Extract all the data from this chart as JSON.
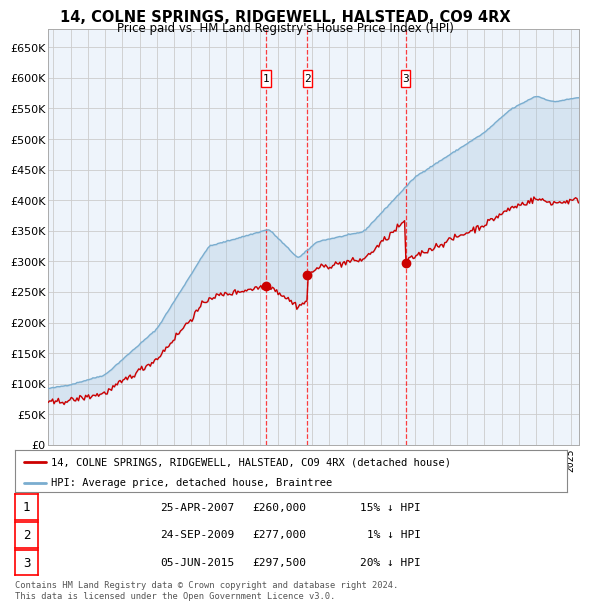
{
  "title": "14, COLNE SPRINGS, RIDGEWELL, HALSTEAD, CO9 4RX",
  "subtitle": "Price paid vs. HM Land Registry's House Price Index (HPI)",
  "ylim": [
    0,
    680000
  ],
  "yticks": [
    0,
    50000,
    100000,
    150000,
    200000,
    250000,
    300000,
    350000,
    400000,
    450000,
    500000,
    550000,
    600000,
    650000
  ],
  "xlim_start": 1994.7,
  "xlim_end": 2025.5,
  "sale_dates": [
    2007.32,
    2009.73,
    2015.43
  ],
  "sale_prices": [
    260000,
    277000,
    297500
  ],
  "sale_labels": [
    "1",
    "2",
    "3"
  ],
  "legend_entries": [
    "14, COLNE SPRINGS, RIDGEWELL, HALSTEAD, CO9 4RX (detached house)",
    "HPI: Average price, detached house, Braintree"
  ],
  "legend_colors": [
    "#cc0000",
    "#7aadcf"
  ],
  "table_rows": [
    [
      "1",
      "25-APR-2007",
      "£260,000",
      "15% ↓ HPI"
    ],
    [
      "2",
      "24-SEP-2009",
      "£277,000",
      "1% ↓ HPI"
    ],
    [
      "3",
      "05-JUN-2015",
      "£297,500",
      "20% ↓ HPI"
    ]
  ],
  "footnote": "Contains HM Land Registry data © Crown copyright and database right 2024.\nThis data is licensed under the Open Government Licence v3.0.",
  "grid_color": "#cccccc",
  "bg_color": "#ffffff",
  "plot_bg_color": "#eef4fb"
}
